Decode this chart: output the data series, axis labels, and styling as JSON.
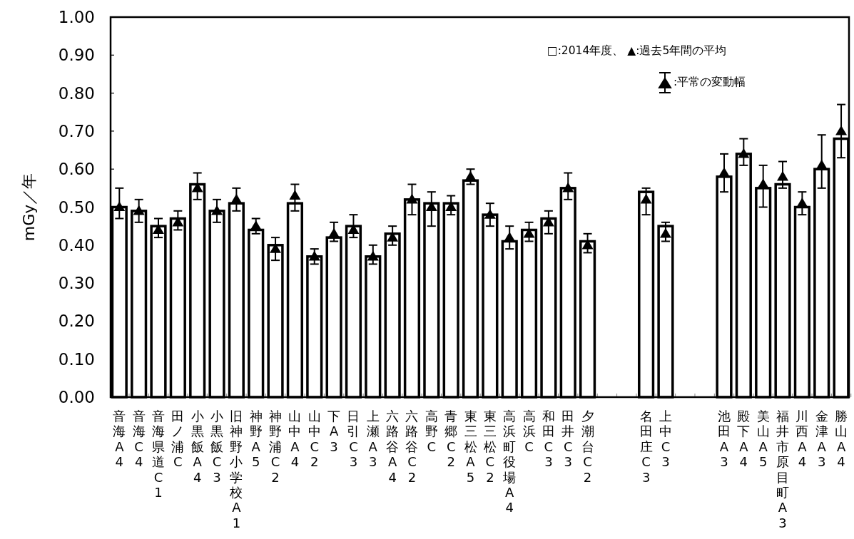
{
  "chart_data": {
    "type": "bar",
    "categories": [
      "音海A4",
      "音海C4",
      "音海県道C1",
      "田ノ浦C",
      "小黒飯A4",
      "小黒飯C3",
      "旧神野小学校A1",
      "神野A5",
      "神野浦C2",
      "山中A4",
      "山中C2",
      "下A3",
      "日引C3",
      "上瀬A3",
      "六路谷A4",
      "六路谷C2",
      "高野C",
      "青郷C2",
      "東三松A5",
      "東三松C2",
      "高浜町役場A4",
      "高浜C",
      "和田C3",
      "田井C3",
      "夕潮台C2",
      null,
      null,
      "名田庄C3",
      "上中C3",
      null,
      null,
      "池田A3",
      "殿下A4",
      "美山A5",
      "福井市原目町A3",
      "川西A4",
      "金津A3",
      "勝山A4"
    ],
    "series": [
      {
        "color": "#ffffff",
        "values": [
          0.5,
          0.49,
          0.45,
          0.47,
          0.56,
          0.49,
          0.51,
          0.44,
          0.4,
          0.51,
          0.37,
          0.42,
          0.45,
          0.37,
          0.43,
          0.52,
          0.51,
          0.51,
          0.57,
          0.48,
          0.41,
          0.44,
          0.47,
          0.55,
          0.41,
          null,
          null,
          0.54,
          0.45,
          null,
          null,
          0.58,
          0.64,
          0.55,
          0.56,
          0.5,
          0.6,
          0.68
        ]
      },
      {
        "type": "scatter",
        "marker": "triangle",
        "color": "#000000",
        "values": [
          0.5,
          0.49,
          0.44,
          0.46,
          0.55,
          0.49,
          0.52,
          0.45,
          0.39,
          0.53,
          0.37,
          0.43,
          0.44,
          0.37,
          0.42,
          0.52,
          0.5,
          0.5,
          0.58,
          0.48,
          0.42,
          0.43,
          0.46,
          0.55,
          0.4,
          null,
          null,
          0.52,
          0.43,
          null,
          null,
          0.59,
          0.64,
          0.56,
          0.58,
          0.51,
          0.61,
          0.7
        ],
        "errors": [
          [
            0.47,
            0.55
          ],
          [
            0.46,
            0.52
          ],
          [
            0.42,
            0.47
          ],
          [
            0.44,
            0.49
          ],
          [
            0.52,
            0.59
          ],
          [
            0.46,
            0.52
          ],
          [
            0.49,
            0.55
          ],
          [
            0.43,
            0.47
          ],
          [
            0.36,
            0.42
          ],
          [
            0.49,
            0.56
          ],
          [
            0.35,
            0.39
          ],
          [
            0.41,
            0.46
          ],
          [
            0.42,
            0.48
          ],
          [
            0.35,
            0.4
          ],
          [
            0.4,
            0.45
          ],
          [
            0.48,
            0.56
          ],
          [
            0.45,
            0.54
          ],
          [
            0.48,
            0.53
          ],
          [
            0.56,
            0.6
          ],
          [
            0.45,
            0.51
          ],
          [
            0.39,
            0.45
          ],
          [
            0.41,
            0.46
          ],
          [
            0.43,
            0.49
          ],
          [
            0.52,
            0.59
          ],
          [
            0.38,
            0.43
          ],
          null,
          null,
          [
            0.48,
            0.55
          ],
          [
            0.41,
            0.46
          ],
          null,
          null,
          [
            0.54,
            0.64
          ],
          [
            0.61,
            0.68
          ],
          [
            0.5,
            0.61
          ],
          [
            0.55,
            0.62
          ],
          [
            0.48,
            0.54
          ],
          [
            0.55,
            0.69
          ],
          [
            0.63,
            0.77
          ]
        ]
      }
    ],
    "ylabel": "mGy／年",
    "ylim": [
      0,
      1
    ],
    "yticks": [
      {
        "value": 0,
        "label": "0.00"
      },
      {
        "value": 0.1,
        "label": "0.10"
      },
      {
        "value": 0.2,
        "label": "0.20"
      },
      {
        "value": 0.3,
        "label": "0.30"
      },
      {
        "value": 0.4,
        "label": "0.40"
      },
      {
        "value": 0.5,
        "label": "0.50"
      },
      {
        "value": 0.6,
        "label": "0.60"
      },
      {
        "value": 0.7,
        "label": "0.70"
      },
      {
        "value": 0.8,
        "label": "0.80"
      },
      {
        "value": 0.9,
        "label": "0.90"
      },
      {
        "value": 1,
        "label": "1.00"
      }
    ],
    "annotations": [
      "□:2014年度、 ▲:過去5年間の平均",
      ":平常の変動幅"
    ],
    "grid": false
  }
}
